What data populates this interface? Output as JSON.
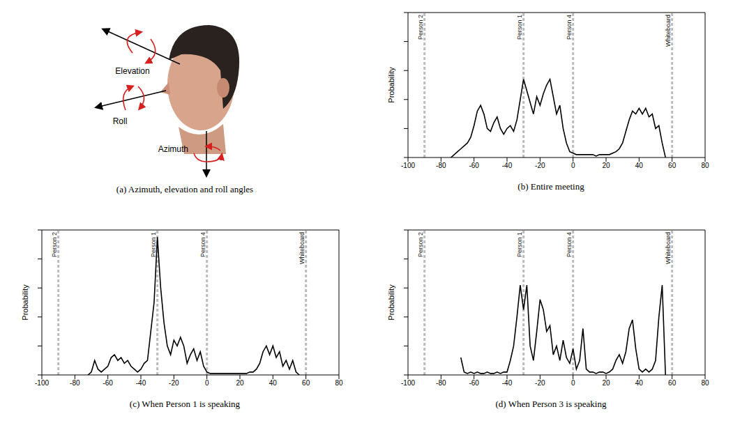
{
  "diagram": {
    "labels": [
      "Elevation",
      "Roll",
      "Azimuth"
    ],
    "caption": "(a) Azimuth, elevation and roll angles"
  },
  "chart_data": [
    {
      "type": "line",
      "title": "(b) Entire meeting",
      "ylabel": "Probability",
      "color": "#000000",
      "tick_labels": "x",
      "xlim": [
        -100,
        80
      ],
      "xticks": [
        -100,
        -80,
        -60,
        -40,
        -20,
        0,
        20,
        40,
        60,
        80
      ],
      "ylim": [
        0,
        1
      ],
      "yticks": [
        0,
        0.2,
        0.4,
        0.6,
        0.8,
        1
      ],
      "annotations": [
        {
          "x": -90,
          "label": "Person 2"
        },
        {
          "x": -30,
          "label": "Person 1"
        },
        {
          "x": 0,
          "label": "Person 4"
        },
        {
          "x": 60,
          "label": "Whiteboard"
        }
      ],
      "x": [
        -74,
        -72,
        -70,
        -68,
        -66,
        -64,
        -62,
        -60,
        -58,
        -56,
        -54,
        -52,
        -50,
        -48,
        -46,
        -44,
        -42,
        -40,
        -38,
        -36,
        -34,
        -32,
        -30,
        -28,
        -26,
        -24,
        -22,
        -20,
        -18,
        -16,
        -14,
        -12,
        -10,
        -8,
        -6,
        -4,
        -2,
        0,
        2,
        4,
        6,
        8,
        10,
        12,
        14,
        16,
        18,
        20,
        22,
        24,
        26,
        28,
        30,
        32,
        34,
        36,
        38,
        40,
        42,
        44,
        46,
        48,
        50,
        52,
        54,
        56
      ],
      "values": [
        0,
        0.02,
        0.04,
        0.06,
        0.08,
        0.1,
        0.14,
        0.22,
        0.32,
        0.36,
        0.3,
        0.2,
        0.18,
        0.24,
        0.28,
        0.2,
        0.16,
        0.2,
        0.22,
        0.18,
        0.26,
        0.4,
        0.54,
        0.46,
        0.38,
        0.3,
        0.42,
        0.36,
        0.44,
        0.5,
        0.54,
        0.42,
        0.3,
        0.36,
        0.2,
        0.1,
        0.04,
        0.03,
        0.02,
        0.02,
        0.02,
        0.02,
        0.02,
        0.02,
        0.01,
        0.02,
        0.02,
        0.02,
        0.02,
        0.03,
        0.04,
        0.06,
        0.1,
        0.18,
        0.26,
        0.32,
        0.3,
        0.34,
        0.3,
        0.34,
        0.28,
        0.3,
        0.2,
        0.22,
        0.1,
        0
      ]
    },
    {
      "type": "line",
      "title": "(c) When Person 1 is speaking",
      "ylabel": "Probability",
      "color": "#000000",
      "tick_labels": "x",
      "xlim": [
        -100,
        80
      ],
      "xticks": [
        -100,
        -80,
        -60,
        -40,
        -20,
        0,
        20,
        40,
        60,
        80
      ],
      "ylim": [
        0,
        1
      ],
      "yticks": [
        0,
        0.2,
        0.4,
        0.6,
        0.8,
        1
      ],
      "annotations": [
        {
          "x": -90,
          "label": "Person 2"
        },
        {
          "x": -30,
          "label": "Person 1"
        },
        {
          "x": 0,
          "label": "Person 4"
        },
        {
          "x": 60,
          "label": "Whiteboard"
        }
      ],
      "x": [
        -72,
        -70,
        -68,
        -66,
        -64,
        -62,
        -60,
        -58,
        -56,
        -54,
        -52,
        -50,
        -48,
        -46,
        -44,
        -42,
        -40,
        -38,
        -36,
        -34,
        -32,
        -30,
        -28,
        -26,
        -24,
        -22,
        -20,
        -18,
        -16,
        -14,
        -12,
        -10,
        -8,
        -6,
        -4,
        -2,
        0,
        2,
        4,
        6,
        8,
        10,
        12,
        14,
        16,
        18,
        20,
        22,
        24,
        26,
        28,
        30,
        32,
        34,
        36,
        38,
        40,
        42,
        44,
        46,
        48,
        50,
        52,
        54,
        56
      ],
      "values": [
        0,
        0.02,
        0.1,
        0.04,
        0.02,
        0.04,
        0.06,
        0.12,
        0.14,
        0.1,
        0.12,
        0.08,
        0.1,
        0.06,
        0.04,
        0.02,
        0.04,
        0.08,
        0.1,
        0.3,
        0.5,
        0.95,
        0.6,
        0.36,
        0.2,
        0.14,
        0.24,
        0.2,
        0.26,
        0.2,
        0.08,
        0.14,
        0.18,
        0.1,
        0.16,
        0.06,
        0.02,
        0.01,
        0.01,
        0.01,
        0.01,
        0.01,
        0.01,
        0.01,
        0.01,
        0.01,
        0.01,
        0.01,
        0.01,
        0.02,
        0.02,
        0.04,
        0.08,
        0.16,
        0.2,
        0.14,
        0.2,
        0.12,
        0.16,
        0.06,
        0.1,
        0.04,
        0.1,
        0.02,
        0
      ]
    },
    {
      "type": "line",
      "title": "(d) When Person 3 is speaking",
      "ylabel": "Probability",
      "color": "#000000",
      "tick_labels": "x",
      "xlim": [
        -100,
        80
      ],
      "xticks": [
        -100,
        -80,
        -60,
        -40,
        -20,
        0,
        20,
        40,
        60,
        80
      ],
      "ylim": [
        0,
        1
      ],
      "yticks": [
        0,
        0.2,
        0.4,
        0.6,
        0.8,
        1
      ],
      "annotations": [
        {
          "x": -90,
          "label": "Person 2"
        },
        {
          "x": -30,
          "label": "Person 1"
        },
        {
          "x": 0,
          "label": "Person 4"
        },
        {
          "x": 60,
          "label": "Whiteboard"
        }
      ],
      "x": [
        -68,
        -66,
        -64,
        -62,
        -60,
        -58,
        -56,
        -54,
        -52,
        -50,
        -48,
        -46,
        -44,
        -42,
        -40,
        -38,
        -36,
        -34,
        -32,
        -30,
        -28,
        -26,
        -24,
        -22,
        -20,
        -18,
        -16,
        -14,
        -12,
        -10,
        -8,
        -6,
        -4,
        -2,
        0,
        2,
        4,
        6,
        8,
        10,
        12,
        14,
        16,
        18,
        20,
        22,
        24,
        26,
        28,
        30,
        32,
        34,
        36,
        38,
        40,
        42,
        44,
        46,
        48,
        50,
        52,
        54,
        56
      ],
      "values": [
        0.12,
        0.02,
        0.01,
        0.02,
        0.01,
        0.02,
        0.01,
        0.01,
        0.02,
        0.01,
        0.01,
        0.02,
        0.01,
        0.02,
        0.02,
        0.1,
        0.2,
        0.4,
        0.62,
        0.45,
        0.62,
        0.2,
        0.1,
        0.3,
        0.52,
        0.45,
        0.3,
        0.34,
        0.14,
        0.2,
        0.1,
        0.24,
        0.12,
        0.08,
        0.18,
        0.04,
        0.1,
        0.32,
        0.04,
        0.02,
        0.02,
        0.01,
        0.02,
        0.02,
        0.01,
        0.02,
        0.04,
        0.1,
        0.14,
        0.08,
        0.16,
        0.32,
        0.38,
        0.18,
        0.04,
        0.02,
        0.04,
        0.02,
        0.04,
        0.1,
        0.4,
        0.62,
        0
      ]
    }
  ]
}
